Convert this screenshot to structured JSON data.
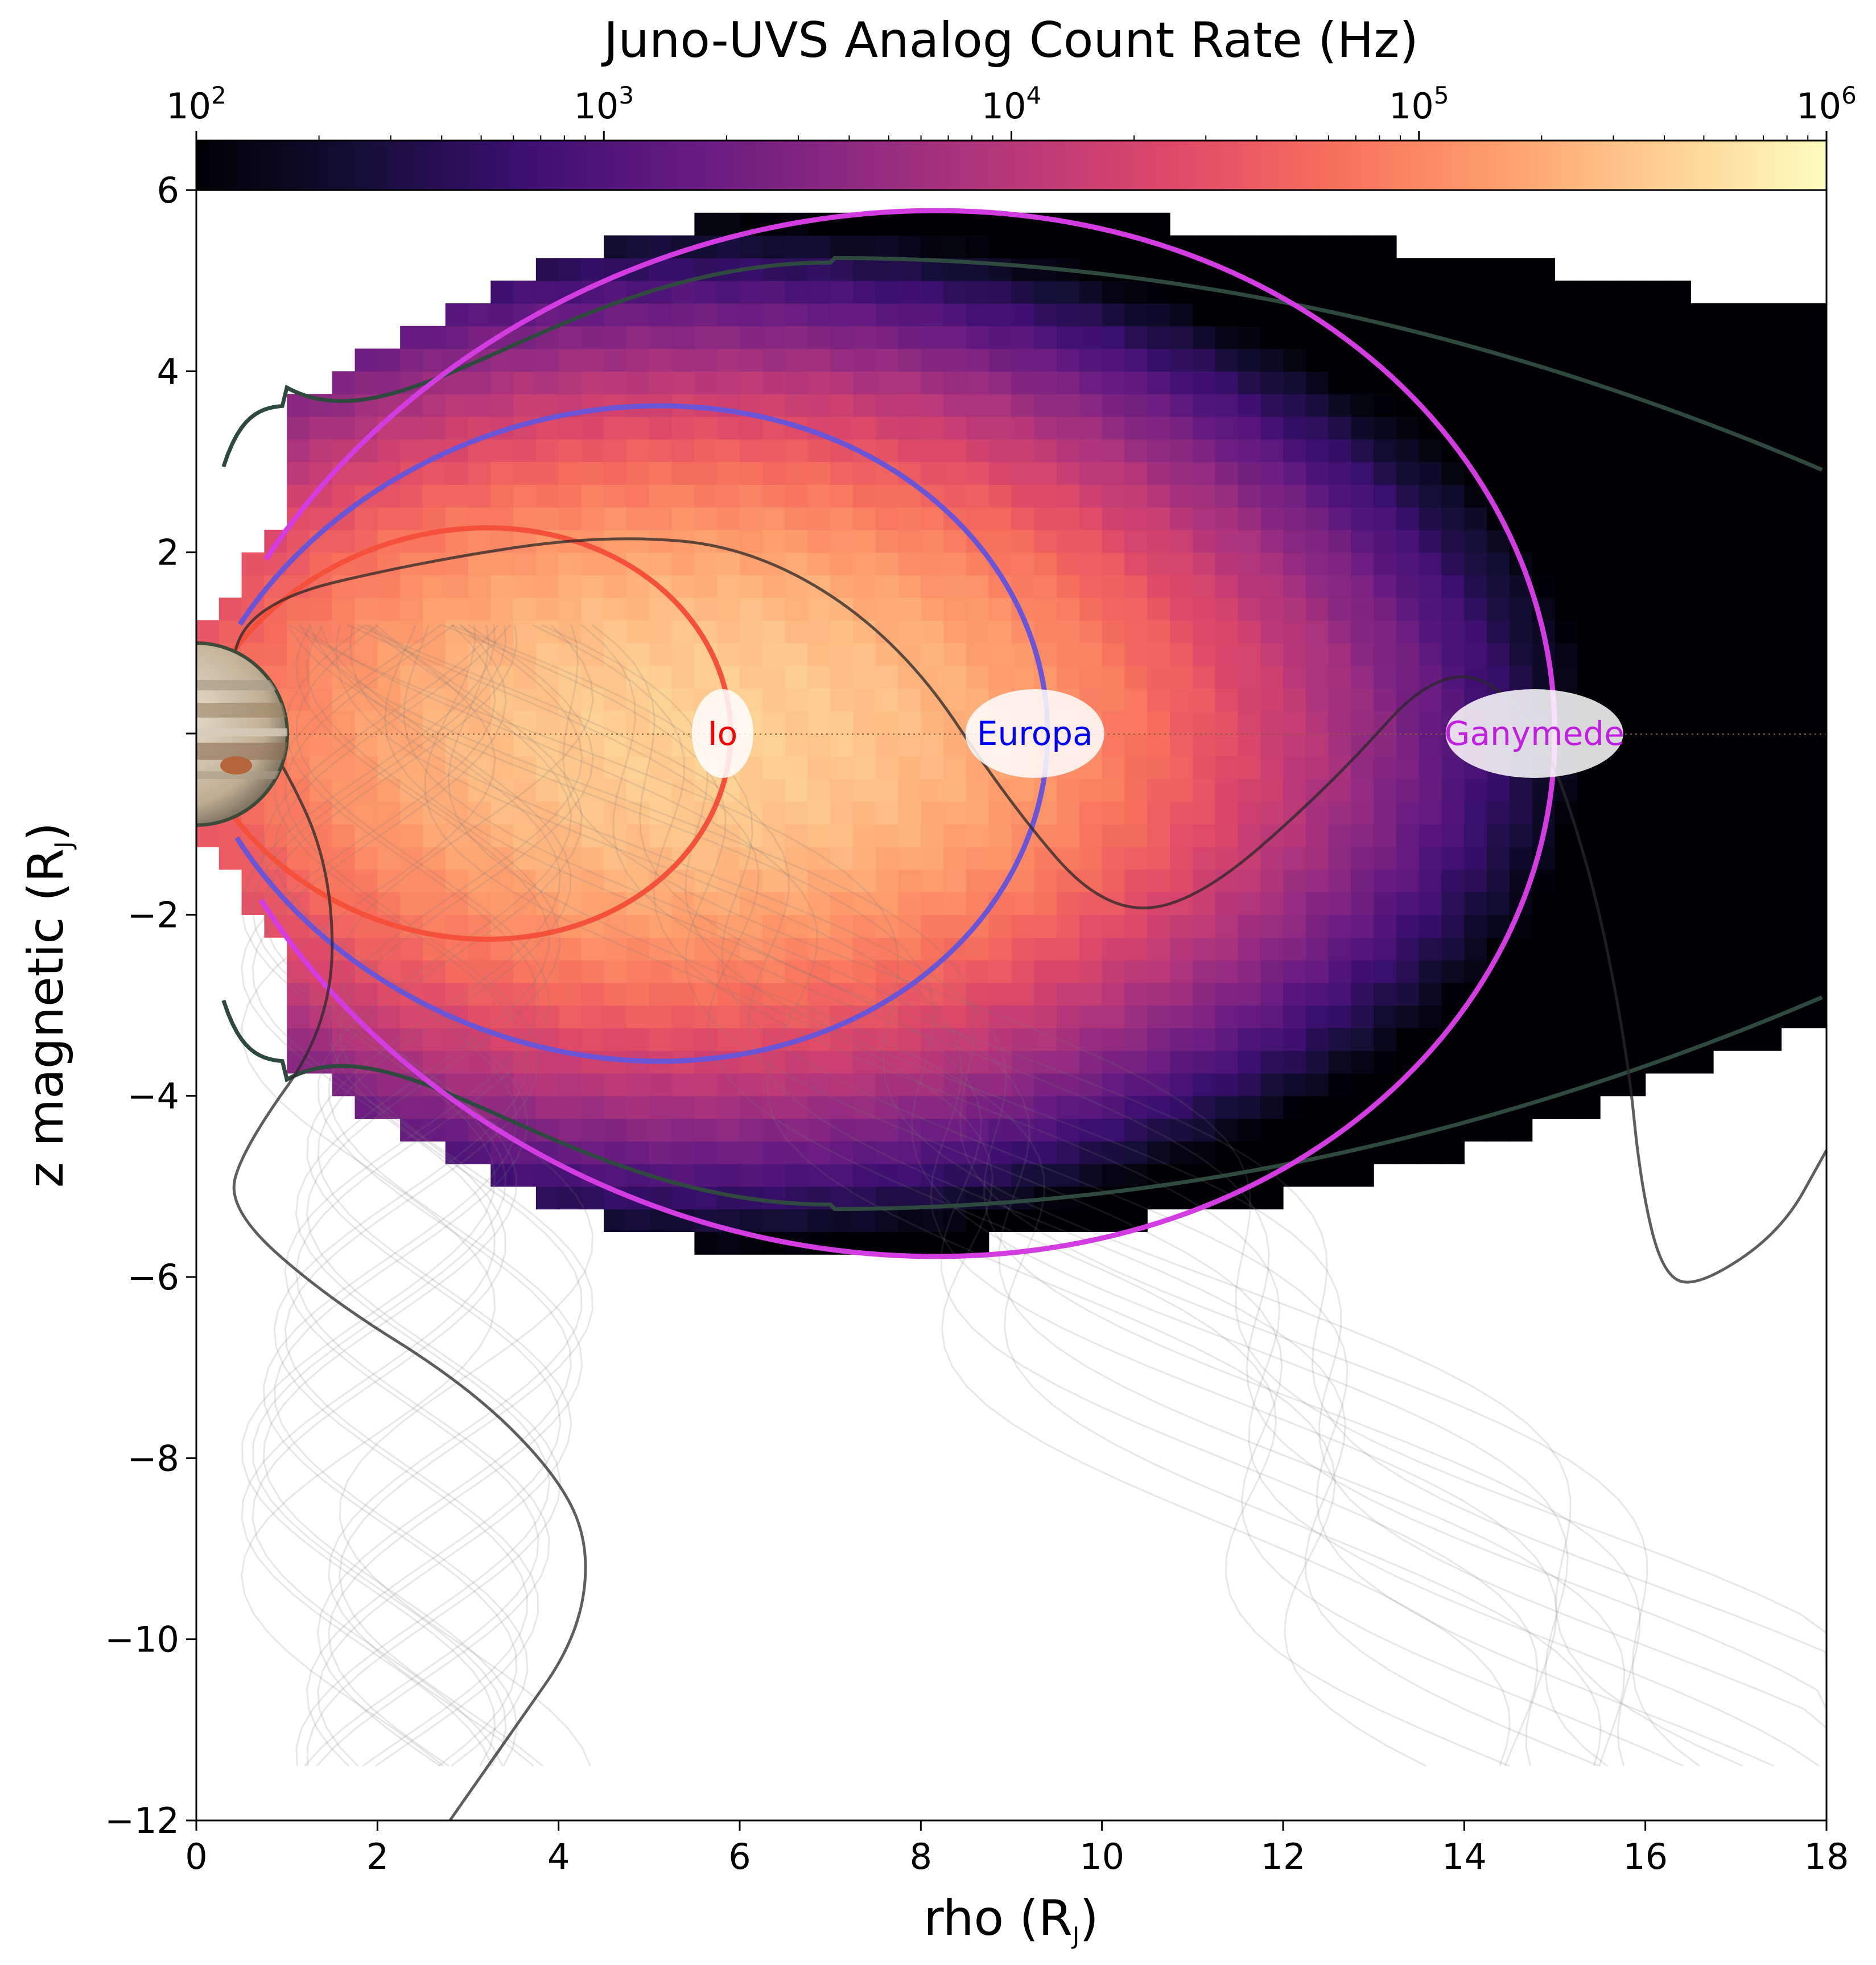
{
  "chart_data": {
    "type": "heatmap",
    "title": "Juno-UVS Analog Count Rate (Hz)",
    "xlabel": "rho (R",
    "xlabel_sub": "J",
    "xlabel_end": ")",
    "ylabel": "z magnetic (R",
    "ylabel_sub": "J",
    "ylabel_end": ")",
    "xlim": [
      0,
      18
    ],
    "ylim": [
      -12,
      6
    ],
    "x_ticks": [
      0,
      2,
      4,
      6,
      8,
      10,
      12,
      14,
      16,
      18
    ],
    "x_tick_labels": [
      "0",
      "2",
      "4",
      "6",
      "8",
      "10",
      "12",
      "14",
      "16",
      "18"
    ],
    "y_ticks": [
      6,
      4,
      2,
      0,
      -2,
      -4,
      -6,
      -8,
      -10,
      -12
    ],
    "y_tick_labels": [
      "6",
      "4",
      "2",
      "",
      "−2",
      "−4",
      "−6",
      "−8",
      "−10",
      "−12"
    ],
    "colorbar": {
      "scale": "log",
      "range": [
        100,
        1000000
      ],
      "colormap": "magma",
      "ticks": [
        {
          "value": 100,
          "base": "10",
          "exp": "2"
        },
        {
          "value": 1000,
          "base": "10",
          "exp": "3"
        },
        {
          "value": 10000,
          "base": "10",
          "exp": "4"
        },
        {
          "value": 100000,
          "base": "10",
          "exp": "5"
        },
        {
          "value": 1000000,
          "base": "10",
          "exp": "6"
        }
      ]
    },
    "heatmap_cells": {
      "description_of_pattern": "count rate peaks near rho 2-10 at equator, falls off outward",
      "x_bin_width": 0.25,
      "z_bin_width": 0.25,
      "peak_log10_rate": 5.6,
      "outer_log10_rate": 3.0
    },
    "moon_field_lines": [
      {
        "name": "Io",
        "L": 5.9,
        "color": "#f5503a",
        "label_color": "#ff0000"
      },
      {
        "name": "Europa",
        "L": 9.4,
        "color": "#6a55d6",
        "label_color": "#0000ff"
      },
      {
        "name": "Ganymede",
        "L": 15.0,
        "color": "#d23ce0",
        "label_color": "#c020e0"
      }
    ],
    "boundary_line": {
      "color": "#2e4a3e"
    },
    "highlighted_trajectories": [
      {
        "name": "trajectory-a",
        "points": [
          [
            2.8,
            -12
          ],
          [
            3.5,
            -11
          ],
          [
            4.2,
            -10
          ],
          [
            4.35,
            -9
          ],
          [
            4.0,
            -8.2
          ],
          [
            3.0,
            -7.2
          ],
          [
            1.4,
            -6.2
          ],
          [
            0.35,
            -5.25
          ],
          [
            0.5,
            -4.6
          ],
          [
            1.5,
            -3.2
          ],
          [
            1.5,
            -1.5
          ],
          [
            0.9,
            -0.2
          ],
          [
            0.3,
            0.5
          ],
          [
            0.6,
            1.45
          ],
          [
            2.5,
            1.9
          ],
          [
            4.5,
            2.2
          ],
          [
            6.2,
            2.05
          ],
          [
            7.8,
            1.0
          ],
          [
            9.0,
            -0.8
          ],
          [
            10.0,
            -1.95
          ],
          [
            11.0,
            -1.9
          ],
          [
            12.5,
            -0.6
          ],
          [
            13.8,
            0.85
          ],
          [
            14.8,
            0.2
          ],
          [
            15.4,
            -1.5
          ],
          [
            15.8,
            -3.5
          ],
          [
            15.95,
            -5.0
          ],
          [
            16.2,
            -6.0
          ],
          [
            16.6,
            -6.1
          ],
          [
            17.5,
            -5.5
          ],
          [
            18,
            -4.6
          ]
        ]
      }
    ],
    "equator_line": {
      "z": 0,
      "color": "#8a5a3a",
      "style": "dotted"
    }
  }
}
